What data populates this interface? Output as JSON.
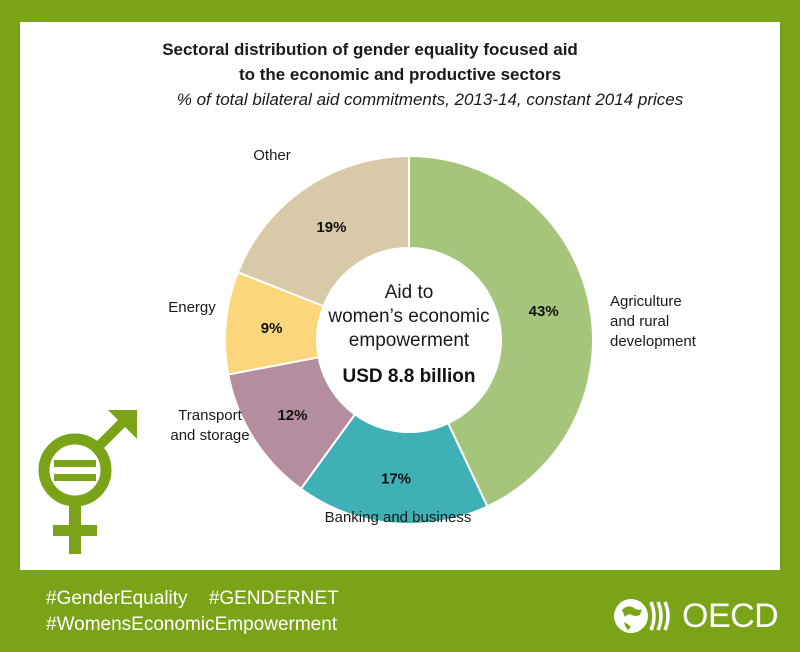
{
  "chart_data": {
    "type": "pie",
    "donut": true,
    "title_line1": "Sectoral distribution of gender equality focused aid",
    "title_line2": "to the economic and productive sectors",
    "subtitle": "% of total bilateral aid commitments, 2013-14, constant 2014 prices",
    "center_label_lines": [
      "Aid to",
      "women’s economic",
      "empowerment"
    ],
    "center_value": "USD 8.8 billion",
    "slices": [
      {
        "label_lines": [
          "Agriculture",
          "and rural",
          "development"
        ],
        "value": 43,
        "value_label": "43%",
        "color": "#a5c67a"
      },
      {
        "label_lines": [
          "Banking and business"
        ],
        "value": 17,
        "value_label": "17%",
        "color": "#3fb1b6"
      },
      {
        "label_lines": [
          "Transport",
          "and storage"
        ],
        "value": 12,
        "value_label": "12%",
        "color": "#b48d9f"
      },
      {
        "label_lines": [
          "Energy"
        ],
        "value": 9,
        "value_label": "9%",
        "color": "#fdd57a"
      },
      {
        "label_lines": [
          "Other"
        ],
        "value": 19,
        "value_label": "19%",
        "color": "#d8c9a9"
      }
    ]
  },
  "footer": {
    "hashtags_row1": [
      "#GenderEquality",
      "#GENDERNET"
    ],
    "hashtags_row2": "#WomensEconomicEmpowerment",
    "logo_text": "OECD"
  },
  "icons": {
    "gender_symbol": "gender-equality-icon",
    "globe": "oecd-globe-icon"
  },
  "colors": {
    "brand_green": "#7aa318"
  }
}
